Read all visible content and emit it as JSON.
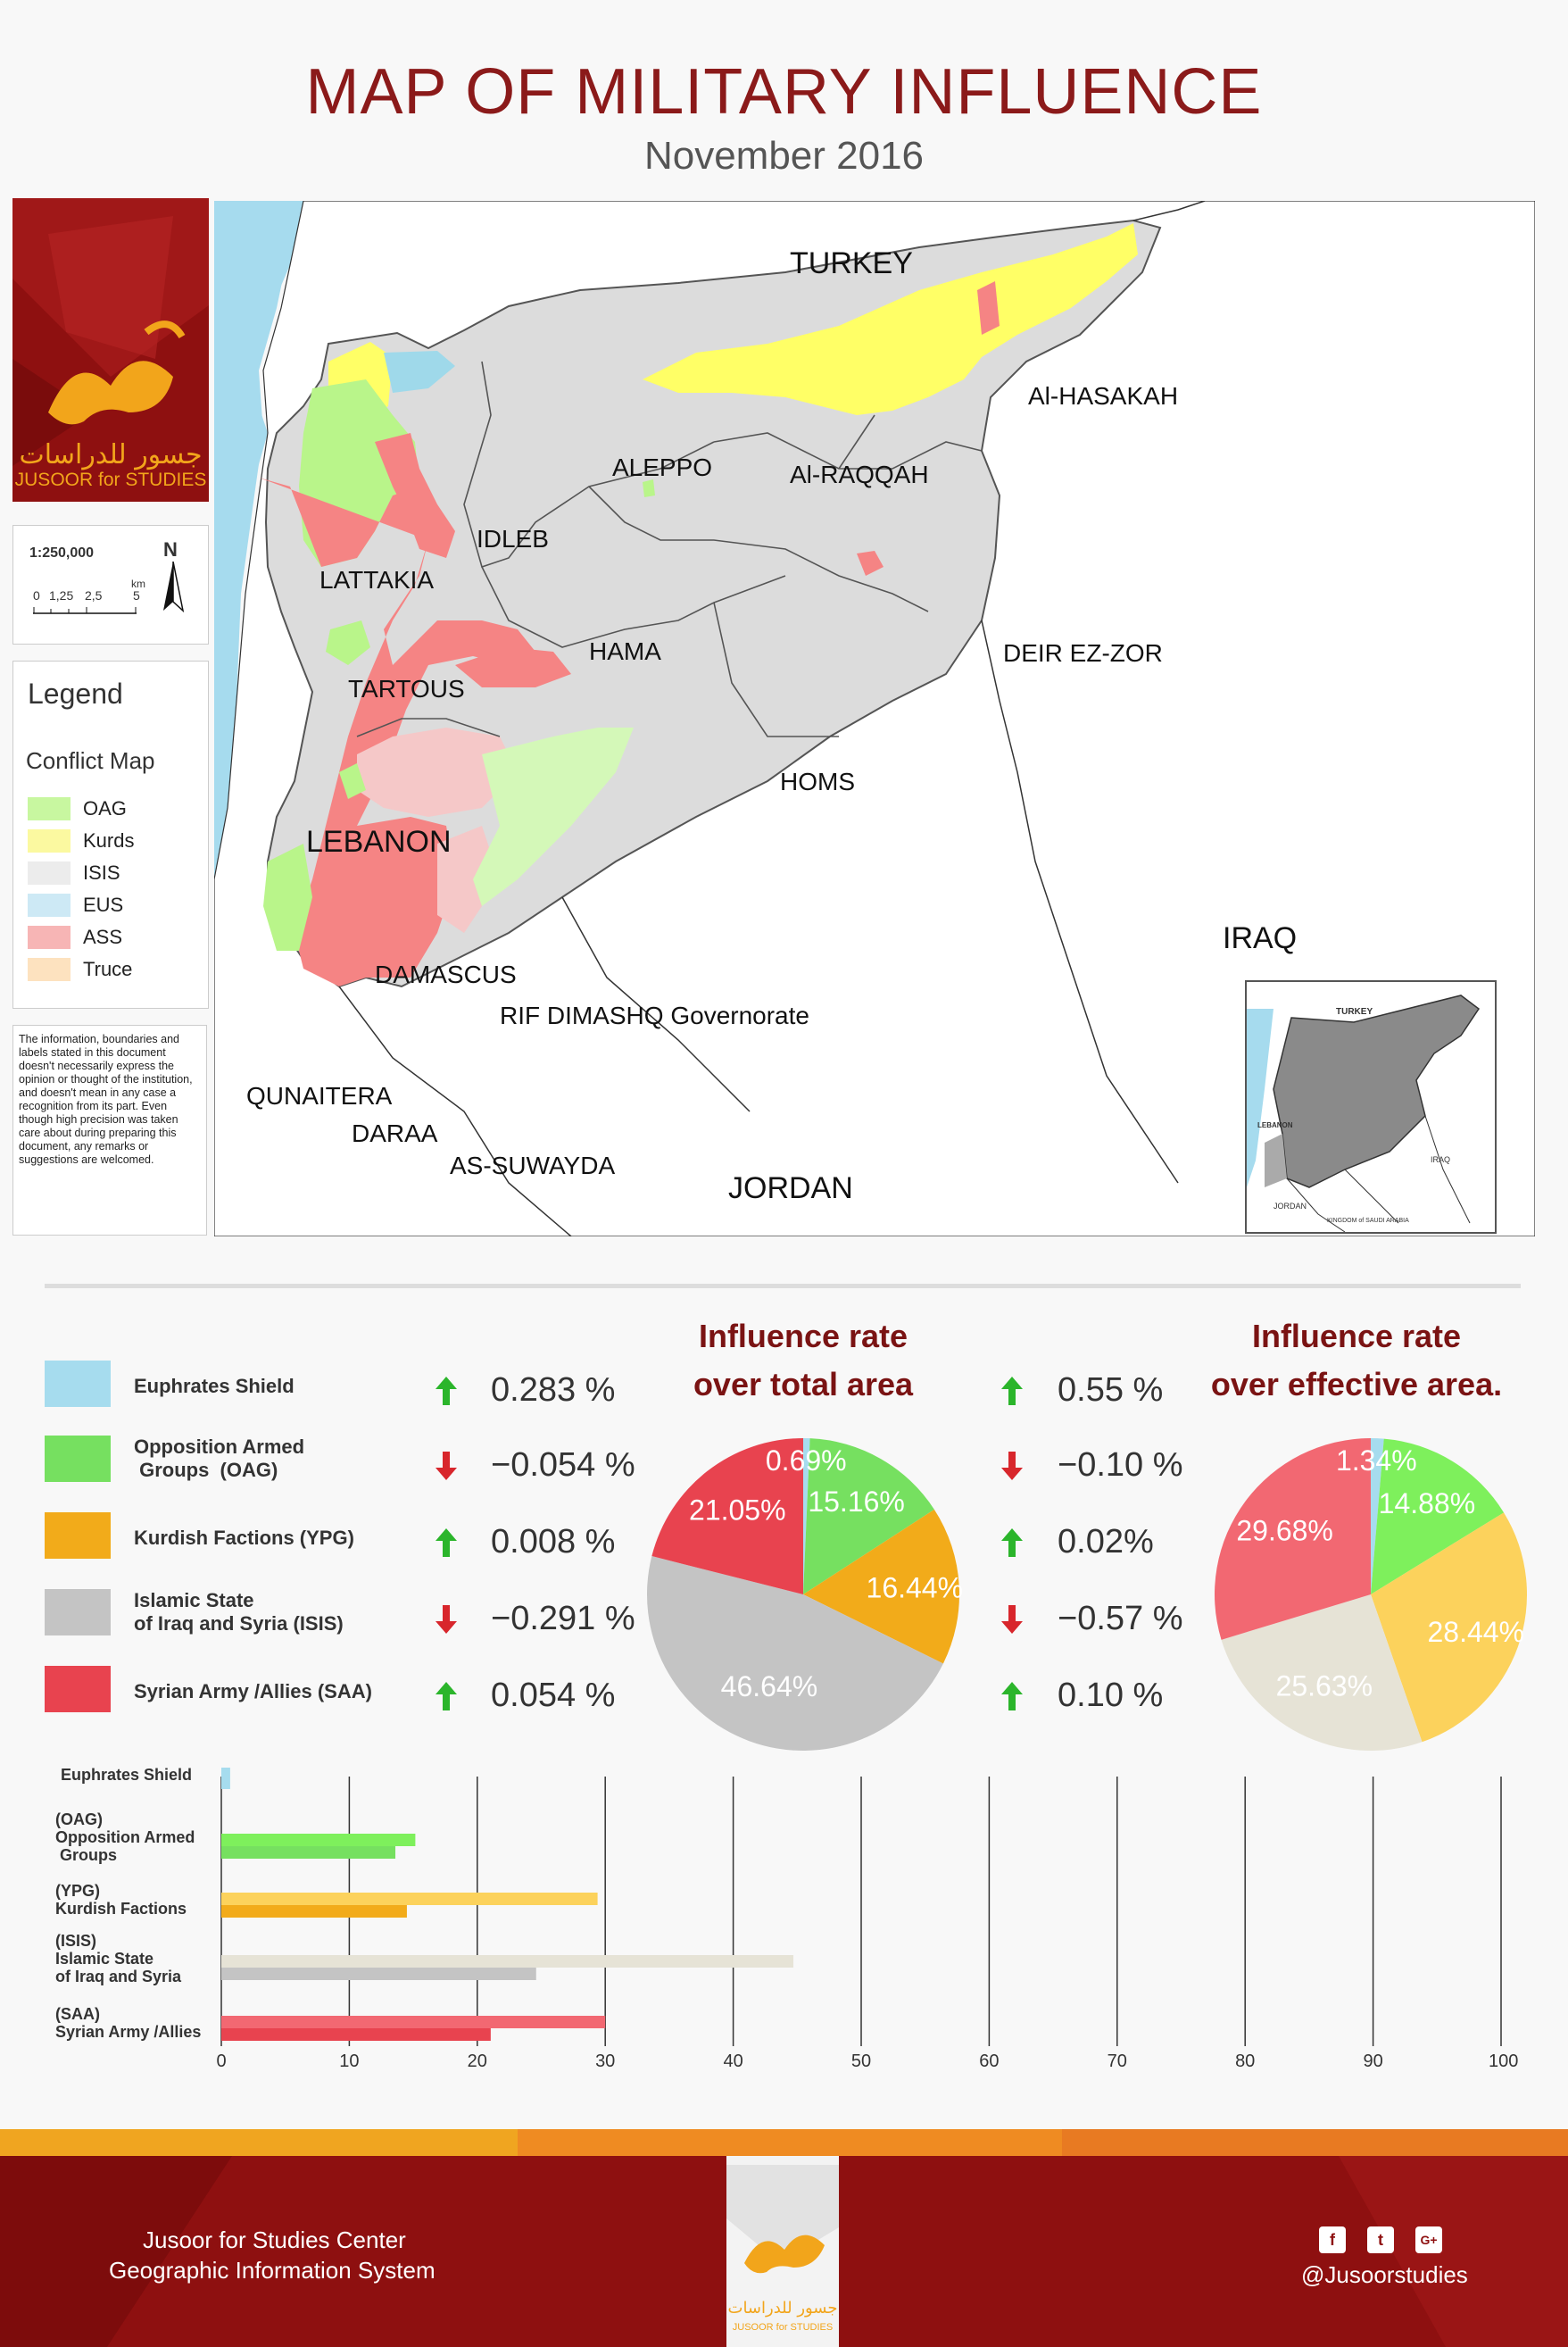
{
  "header": {
    "title": "MAP OF MILITARY INFLUENCE",
    "subtitle": "November   2016"
  },
  "logo": {
    "arabic": "جسور للدراسات",
    "english": "JUSOOR for STUDIES"
  },
  "scale": {
    "ratio": "1:250,000",
    "north": "N",
    "ticks": [
      "0",
      "1,25",
      "2,5",
      "5"
    ],
    "unit": "km"
  },
  "legend": {
    "title": "Legend",
    "subtitle": "Conflict Map",
    "items": [
      {
        "label": "OAG",
        "color": "#c8f7a0"
      },
      {
        "label": "Kurds",
        "color": "#fbf9a0"
      },
      {
        "label": "ISIS",
        "color": "#ececec"
      },
      {
        "label": "EUS",
        "color": "#cde9f5"
      },
      {
        "label": "ASS",
        "color": "#f7b5b5"
      },
      {
        "label": "Truce",
        "color": "#fde2bf"
      }
    ]
  },
  "disclaimer": "The information, boundaries and labels stated in this document doesn't necessarily express the opinion or thought of the institution, and doesn't mean in any case a recognition from its part. Even though high precision was taken care about during preparing this document, any remarks or suggestions are welcomed.",
  "map": {
    "countries": {
      "turkey": "TURKEY",
      "lebanon": "LEBANON",
      "iraq": "IRAQ",
      "jordan": "JORDAN"
    },
    "places": {
      "hasakah": "Al-HASAKAH",
      "aleppo": "ALEPPO",
      "raqqah": "Al-RAQQAH",
      "idleb": "IDLEB",
      "lattakia": "LATTAKIA",
      "hama": "HAMA",
      "deirezzor": "DEIR EZ-ZOR",
      "tartous": "TARTOUS",
      "homs": "HOMS",
      "damascus": "DAMASCUS",
      "rifdimashq": "RIF DIMASHQ Governorate",
      "qunaitera": "QUNAITERA",
      "daraa": "DARAA",
      "suwayda": "AS-SUWAYDA"
    },
    "colors": {
      "sea": "#a6dbee",
      "land": "#ffffff",
      "isis": "#d9d9d9",
      "kurds": "#ffff66",
      "oag": "#b9f58a",
      "saa": "#f58484",
      "saa_light": "#f5c8c8",
      "euphrates": "#9fd9ea"
    },
    "inset": {
      "turkey": "TURKEY",
      "lebanon": "LEBANON",
      "iraq": "IRAQ",
      "jordan": "JORDAN",
      "saudi": "KINGDOM of SAUDI ARABIA"
    }
  },
  "stats": {
    "pie1_title": [
      "Influence rate",
      "over total area"
    ],
    "pie2_title": [
      "Influence rate",
      "over effective area."
    ],
    "factions": [
      {
        "label": [
          "Euphrates Shield"
        ],
        "color": "#a6dcee",
        "change_total": "0.283 %",
        "dir_total": "up",
        "change_eff": "0.55 %",
        "dir_eff": "up"
      },
      {
        "label": [
          "Opposition Armed",
          " Groups  (OAG)"
        ],
        "color": "#76e060",
        "change_total": "−0.054 %",
        "dir_total": "down",
        "change_eff": "−0.10 %",
        "dir_eff": "down"
      },
      {
        "label": [
          "Kurdish Factions (YPG)"
        ],
        "color": "#f2ab1a",
        "change_total": "0.008 %",
        "dir_total": "up",
        "change_eff": "0.02%",
        "dir_eff": "up"
      },
      {
        "label": [
          "Islamic State",
          "of Iraq and Syria (ISIS)"
        ],
        "color": "#c4c4c4",
        "change_total": "−0.291 %",
        "dir_total": "down",
        "change_eff": "−0.57 %",
        "dir_eff": "down"
      },
      {
        "label": [
          "Syrian Army /Allies (SAA)"
        ],
        "color": "#e8434f",
        "change_total": "0.054 %",
        "dir_total": "up",
        "change_eff": "0.10 %",
        "dir_eff": "up"
      }
    ],
    "arrow_colors": {
      "up": "#2bb52b",
      "down": "#d8262c"
    }
  },
  "chart_data": [
    {
      "type": "pie",
      "title": "Influence rate over total area",
      "categories": [
        "Euphrates Shield",
        "Opposition Armed Groups (OAG)",
        "Kurdish Factions (YPG)",
        "Islamic State of Iraq and Syria (ISIS)",
        "Syrian Army /Allies (SAA)"
      ],
      "values": [
        0.69,
        15.16,
        16.44,
        46.64,
        21.05
      ],
      "labels": [
        "0.69%",
        "15.16%",
        "16.44%",
        "46.64%",
        "21.05%"
      ],
      "colors": [
        "#a6dcee",
        "#76e060",
        "#f2ab1a",
        "#c4c4c4",
        "#e8434f"
      ]
    },
    {
      "type": "pie",
      "title": "Influence rate over effective area.",
      "categories": [
        "Euphrates Shield",
        "Opposition Armed Groups (OAG)",
        "Kurdish Factions (YPG)",
        "Islamic State of Iraq and Syria (ISIS)",
        "Syrian Army /Allies (SAA)"
      ],
      "values": [
        1.34,
        14.88,
        28.44,
        25.63,
        29.68
      ],
      "labels": [
        "1.34%",
        "14.88%",
        "28.44%",
        "25.63%",
        "29.68%"
      ],
      "colors": [
        "#a6dcee",
        "#7ef05c",
        "#fcd25c",
        "#e6e3d6",
        "#f26872"
      ]
    },
    {
      "type": "bar",
      "orientation": "horizontal",
      "categories": [
        [
          "Euphrates Shield"
        ],
        [
          "(OAG)",
          "Opposition Armed",
          " Groups"
        ],
        [
          "(YPG)",
          "Kurdish Factions"
        ],
        [
          "(ISIS)",
          "Islamic State",
          "of Iraq and Syria"
        ],
        [
          "(SAA)",
          "Syrian Army /Allies"
        ]
      ],
      "series": [
        {
          "values": [
            0.69,
            15.16,
            29.4,
            44.7,
            30.0
          ],
          "colors": [
            "#a6dcee",
            "#7ef05c",
            "#fcd25c",
            "#e6e3d6",
            "#f26872"
          ]
        },
        {
          "values": [
            0.69,
            13.6,
            14.5,
            24.6,
            21.05
          ],
          "colors": [
            "#a6dcee",
            "#76e060",
            "#f2ab1a",
            "#c4c4c4",
            "#e8434f"
          ]
        }
      ],
      "xlim": [
        0,
        100
      ],
      "xticks": [
        "0",
        "10",
        "20",
        "30",
        "40",
        "50",
        "60",
        "70",
        "80",
        "90",
        "100"
      ],
      "grid": true
    }
  ],
  "footer": {
    "line1": "Jusoor for Studies Center",
    "line2": "Geographic Information System",
    "handle": "@Jusoorstudies",
    "logo_en": "JUSOOR for STUDIES",
    "logo_ar": "جسور للدراسات",
    "social": [
      "f",
      "t",
      "G+"
    ]
  }
}
